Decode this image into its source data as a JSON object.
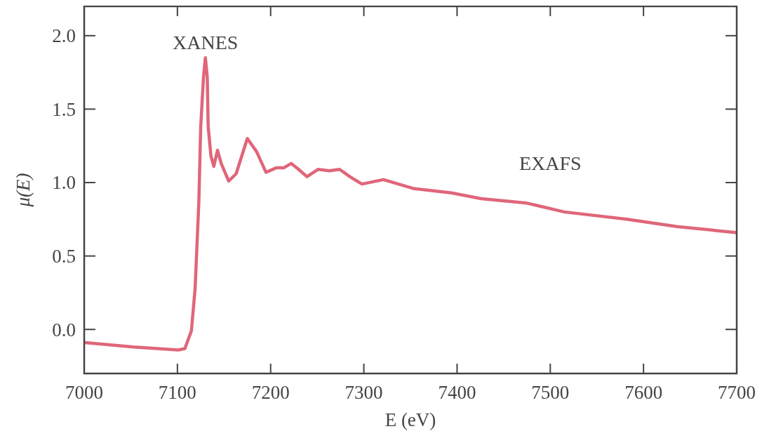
{
  "chart_data": {
    "type": "line",
    "xlabel": "E (eV)",
    "ylabel": "μ(E)",
    "xlim": [
      7000,
      7700
    ],
    "ylim": [
      -0.3,
      2.2
    ],
    "xticks": [
      7000,
      7100,
      7200,
      7300,
      7400,
      7500,
      7600,
      7700
    ],
    "yticks": [
      {
        "value": 0,
        "label": "0.0"
      },
      {
        "value": 0.5,
        "label": "0.5"
      },
      {
        "value": 1,
        "label": "1.0"
      },
      {
        "value": 1.5,
        "label": "1.5"
      },
      {
        "value": 2,
        "label": "2.0"
      }
    ],
    "grid": false,
    "marker": "none",
    "line_style": "solid",
    "annotations": [
      {
        "text": "XANES",
        "x": 7130,
        "y": 1.85
      },
      {
        "text": "EXAFS",
        "x": 7500,
        "y": 0.8
      }
    ],
    "series": [
      {
        "color": "#e0667a",
        "x": [
          7001,
          7053,
          7101,
          7108,
          7115,
          7119,
          7123,
          7125,
          7128,
          7130,
          7132,
          7133,
          7136,
          7139,
          7143,
          7147,
          7155,
          7163,
          7175,
          7185,
          7195,
          7206,
          7214,
          7222,
          7230,
          7239,
          7251,
          7263,
          7274,
          7285,
          7298,
          7321,
          7353,
          7394,
          7426,
          7475,
          7515,
          7582,
          7636,
          7699
        ],
        "values": [
          -0.09,
          -0.12,
          -0.14,
          -0.13,
          -0.01,
          0.28,
          0.87,
          1.38,
          1.72,
          1.85,
          1.72,
          1.38,
          1.18,
          1.11,
          1.22,
          1.13,
          1.01,
          1.06,
          1.3,
          1.21,
          1.07,
          1.1,
          1.1,
          1.13,
          1.09,
          1.04,
          1.09,
          1.08,
          1.09,
          1.04,
          0.99,
          1.02,
          0.96,
          0.93,
          0.89,
          0.86,
          0.8,
          0.75,
          0.7,
          0.66
        ]
      }
    ]
  }
}
